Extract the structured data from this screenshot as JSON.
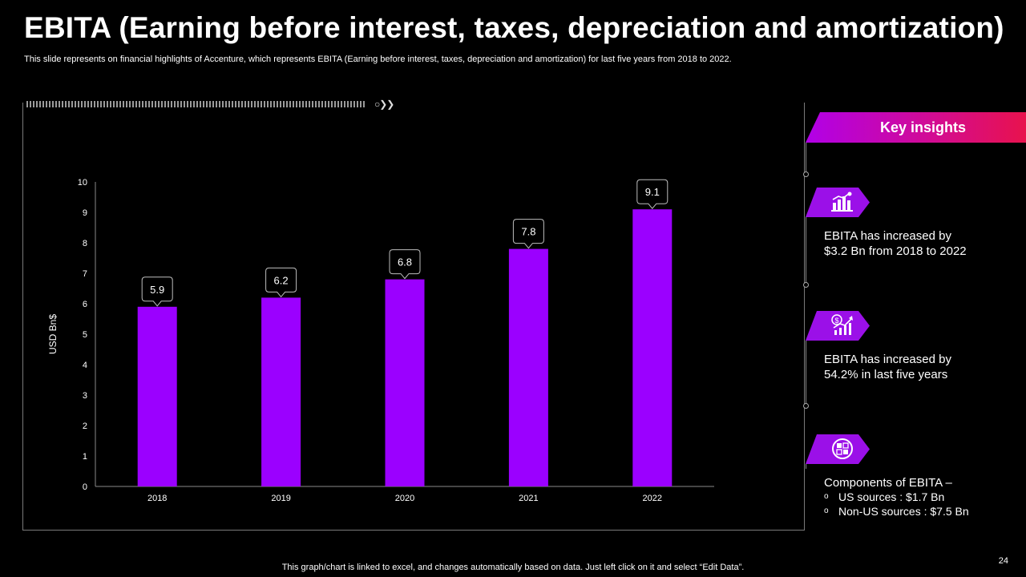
{
  "title": "EBITA (Earning before interest, taxes, depreciation and amortization)",
  "subtitle": "This slide represents on financial highlights of Accenture, which represents EBITA (Earning before interest, taxes, depreciation and amortization) for last five years from 2018 to 2022.",
  "chart_data": {
    "type": "bar",
    "categories": [
      "2018",
      "2019",
      "2020",
      "2021",
      "2022"
    ],
    "values": [
      5.9,
      6.2,
      6.8,
      7.8,
      9.1
    ],
    "data_labels": [
      "5.9",
      "6.2",
      "6.8",
      "7.8",
      "9.1"
    ],
    "title": "",
    "xlabel": "",
    "ylabel": "USD Bn$",
    "ylim": [
      0,
      10
    ],
    "yticks": [
      0,
      1,
      2,
      3,
      4,
      5,
      6,
      7,
      8,
      9,
      10
    ],
    "grid": false,
    "bar_color": "#9b00ff"
  },
  "insights": {
    "header": "Key insights",
    "items": [
      {
        "icon": "building-chart-icon",
        "line1": "EBITA has increased by",
        "line2": "$3.2 Bn from 2018 to 2022"
      },
      {
        "icon": "dollar-growth-icon",
        "line1": "EBITA has increased by",
        "line2": "54.2% in last five years"
      },
      {
        "icon": "components-icon",
        "heading": "Components of EBITA –",
        "bullets": [
          "US sources : $1.7 Bn",
          "Non-US sources : $7.5 Bn"
        ]
      }
    ]
  },
  "footer": "This graph/chart is linked to excel, and changes automatically based on data. Just left click on it and select “Edit Data”.",
  "page_number": "24",
  "colors": {
    "accent": "#9b00ff",
    "header_gradient_end": "#e8124d",
    "background": "#000000"
  }
}
